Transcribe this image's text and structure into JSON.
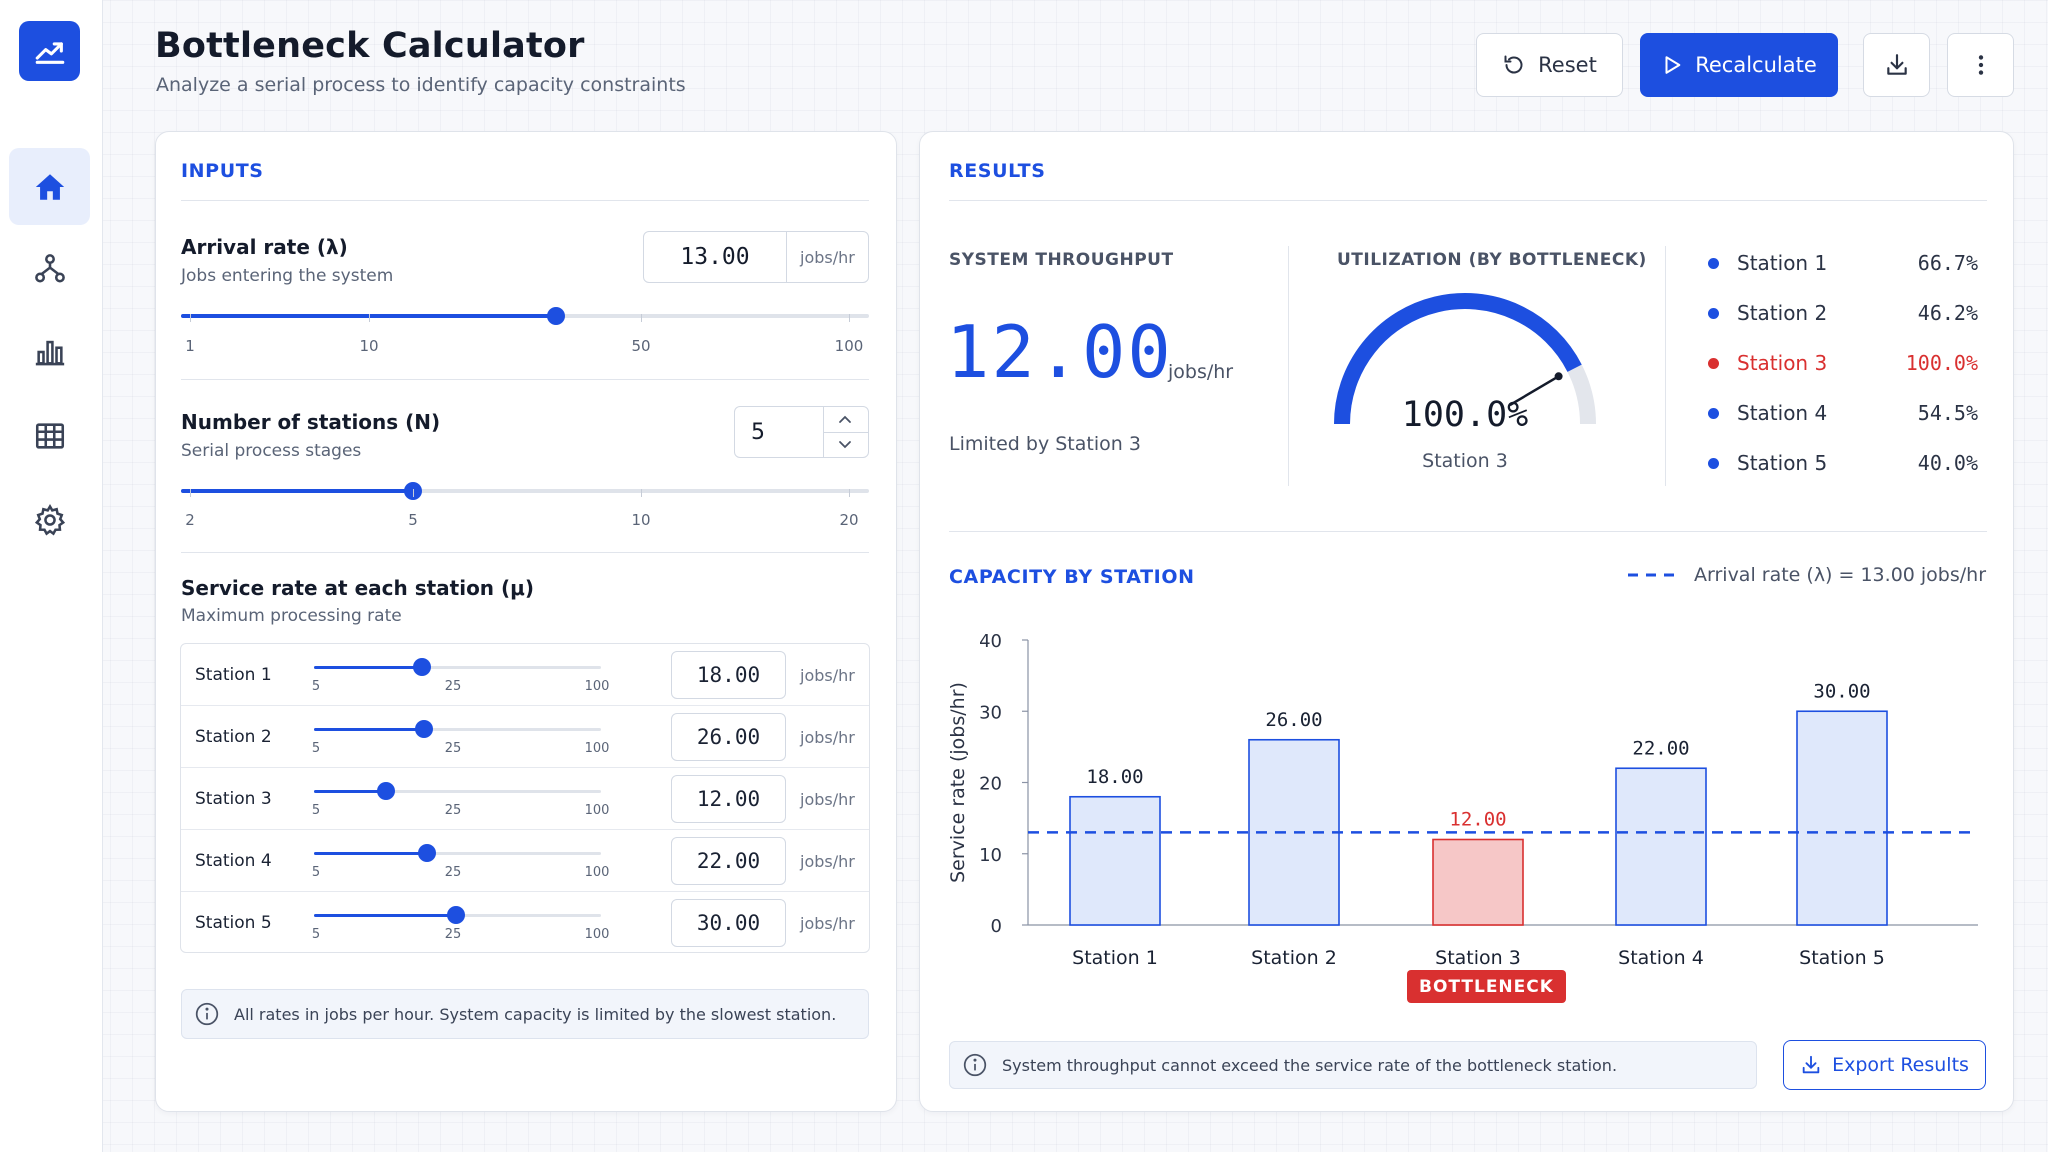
{
  "header": {
    "title": "Bottleneck Calculator",
    "subtitle": "Analyze a serial process to identify capacity constraints",
    "reset_label": "Reset",
    "recalculate_label": "Recalculate"
  },
  "sidebar": {
    "items": [
      {
        "icon": "home-icon",
        "active": true
      },
      {
        "icon": "network-icon",
        "active": false
      },
      {
        "icon": "bar-chart-icon",
        "active": false
      },
      {
        "icon": "table-icon",
        "active": false
      },
      {
        "icon": "gear-icon",
        "active": false
      }
    ]
  },
  "inputs": {
    "section_title": "INPUTS",
    "arrival": {
      "label": "Arrival rate (λ)",
      "sub": "Jobs entering the system",
      "value": "13.00",
      "unit": "jobs/hr",
      "ticks": [
        "1",
        "10",
        "50",
        "100"
      ],
      "slider_fraction": 0.545
    },
    "stations_count": {
      "label": "Number of stations (N)",
      "sub": "Serial process stages",
      "value": "5",
      "ticks": [
        "2",
        "5",
        "10",
        "20"
      ],
      "slider_fraction": 0.337
    },
    "service": {
      "label": "Service rate at each station (μ)",
      "sub": "Maximum processing rate",
      "ticks": [
        "5",
        "25",
        "100"
      ],
      "rows": [
        {
          "name": "Station 1",
          "value": "18.00",
          "unit": "jobs/hr",
          "fraction": 0.375
        },
        {
          "name": "Station 2",
          "value": "26.00",
          "unit": "jobs/hr",
          "fraction": 0.385
        },
        {
          "name": "Station 3",
          "value": "12.00",
          "unit": "jobs/hr",
          "fraction": 0.25
        },
        {
          "name": "Station 4",
          "value": "22.00",
          "unit": "jobs/hr",
          "fraction": 0.395
        },
        {
          "name": "Station 5",
          "value": "30.00",
          "unit": "jobs/hr",
          "fraction": 0.495
        }
      ]
    },
    "info": "All rates in jobs per hour. System capacity is limited by the slowest station."
  },
  "results": {
    "section_title": "RESULTS",
    "throughput": {
      "label": "SYSTEM THROUGHPUT",
      "value": "12.00",
      "unit": "jobs/hr",
      "note": "Limited by Station 3"
    },
    "utilization": {
      "label": "UTILIZATION (BY BOTTLENECK)",
      "value": "100.0%",
      "station": "Station 3",
      "fraction": 0.85
    },
    "legend": [
      {
        "name": "Station 1",
        "value": "66.7%",
        "color": "#1d4fe0"
      },
      {
        "name": "Station 2",
        "value": "46.2%",
        "color": "#1d4fe0"
      },
      {
        "name": "Station 3",
        "value": "100.0%",
        "color": "#d93030"
      },
      {
        "name": "Station 4",
        "value": "54.5%",
        "color": "#1d4fe0"
      },
      {
        "name": "Station 5",
        "value": "40.0%",
        "color": "#1d4fe0"
      }
    ],
    "capacity_title": "CAPACITY BY STATION",
    "arrival_legend": "Arrival rate (λ) = 13.00 jobs/hr",
    "bottleneck_badge": "BOTTLENECK",
    "info": "System throughput cannot exceed the service rate of the bottleneck station.",
    "export_label": "Export Results"
  },
  "chart_data": {
    "type": "bar",
    "categories": [
      "Station 1",
      "Station 2",
      "Station 3",
      "Station 4",
      "Station 5"
    ],
    "values": [
      18.0,
      26.0,
      12.0,
      22.0,
      30.0
    ],
    "value_labels": [
      "18.00",
      "26.00",
      "12.00",
      "22.00",
      "30.00"
    ],
    "bottleneck_index": 2,
    "reference_line": {
      "name": "Arrival rate (λ)",
      "value": 13.0
    },
    "ylabel": "Service rate (jobs/hr)",
    "ylim": [
      0,
      40
    ],
    "yticks": [
      0,
      10,
      20,
      30,
      40
    ],
    "colors": {
      "bar": "#dfe8fb",
      "bar_stroke": "#1d4fe0",
      "bottleneck": "#f6c7c7",
      "bottleneck_stroke": "#d93030"
    }
  }
}
